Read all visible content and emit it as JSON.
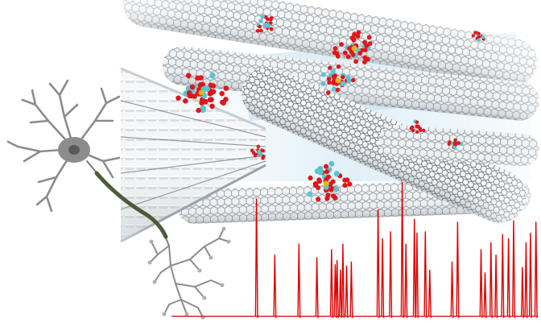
{
  "scene": {
    "subject": "carbon-nanotube-bundle-with-molecular-clusters",
    "elements": [
      "nanotube-bundle",
      "molecular-clusters",
      "neuron",
      "spike-trace"
    ],
    "colors": {
      "background": "#ffffff",
      "nanotube_stroke": "#9aa3ab",
      "nanotube_shadow": "#6e7880",
      "oxygen_atom": "#e0161b",
      "metal_atom": "#5cc4d0",
      "core_atom": "#f0b020",
      "neuron_body": "#8c8c8c",
      "neuron_nucleus": "#5a5a5a",
      "myelin": "#4e5a38",
      "spike_line": "#e00000",
      "haze_blue": "#c8e4f0"
    }
  },
  "spike_trace": {
    "baseline_level": 0.02,
    "spikes": [
      {
        "t": 0.232,
        "h": 0.88
      },
      {
        "t": 0.282,
        "h": 0.47
      },
      {
        "t": 0.348,
        "h": 0.55
      },
      {
        "t": 0.397,
        "h": 0.45
      },
      {
        "t": 0.437,
        "h": 0.51
      },
      {
        "t": 0.447,
        "h": 0.4
      },
      {
        "t": 0.452,
        "h": 0.43
      },
      {
        "t": 0.461,
        "h": 0.36
      },
      {
        "t": 0.468,
        "h": 0.55
      },
      {
        "t": 0.478,
        "h": 0.39
      },
      {
        "t": 0.491,
        "h": 0.42
      },
      {
        "t": 0.564,
        "h": 0.8
      },
      {
        "t": 0.576,
        "h": 0.59
      },
      {
        "t": 0.598,
        "h": 0.64
      },
      {
        "t": 0.63,
        "h": 1.0
      },
      {
        "t": 0.64,
        "h": 0.55
      },
      {
        "t": 0.663,
        "h": 0.73
      },
      {
        "t": 0.67,
        "h": 0.63
      },
      {
        "t": 0.693,
        "h": 0.64
      },
      {
        "t": 0.705,
        "h": 0.36
      },
      {
        "t": 0.766,
        "h": 0.42
      },
      {
        "t": 0.781,
        "h": 0.71
      },
      {
        "t": 0.845,
        "h": 0.51
      },
      {
        "t": 0.856,
        "h": 0.34
      },
      {
        "t": 0.872,
        "h": 0.56
      },
      {
        "t": 0.886,
        "h": 0.47
      },
      {
        "t": 0.904,
        "h": 0.62
      },
      {
        "t": 0.92,
        "h": 0.59
      },
      {
        "t": 0.934,
        "h": 0.72
      },
      {
        "t": 0.958,
        "h": 0.38
      },
      {
        "t": 0.968,
        "h": 0.56
      },
      {
        "t": 0.98,
        "h": 0.63
      },
      {
        "t": 0.995,
        "h": 0.71
      }
    ]
  }
}
